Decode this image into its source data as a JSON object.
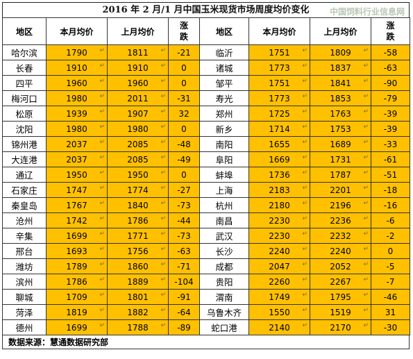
{
  "title": "2016 年 2 月/1 月中国玉米现货市场周度均价变化",
  "watermark": "中国饲料行业信息网",
  "return_mark": "↵",
  "headers": {
    "region": "地区",
    "this_month": "本月均价",
    "last_month": "上月均价",
    "change": "涨跌"
  },
  "rows": [
    {
      "l": {
        "region": "哈尔滨",
        "cur": "1790",
        "prev": "1811",
        "chg": "-21"
      },
      "r": {
        "region": "临沂",
        "cur": "1751",
        "prev": "1809",
        "chg": "-58"
      }
    },
    {
      "l": {
        "region": "长春",
        "cur": "1910",
        "prev": "1910",
        "chg": "0"
      },
      "r": {
        "region": "诸城",
        "cur": "1773",
        "prev": "1837",
        "chg": "-63"
      }
    },
    {
      "l": {
        "region": "四平",
        "cur": "1960",
        "prev": "1960",
        "chg": "0"
      },
      "r": {
        "region": "邹平",
        "cur": "1751",
        "prev": "1841",
        "chg": "-90"
      }
    },
    {
      "l": {
        "region": "梅河口",
        "cur": "1980",
        "prev": "2011",
        "chg": "-31"
      },
      "r": {
        "region": "寿光",
        "cur": "1773",
        "prev": "1853",
        "chg": "-79"
      }
    },
    {
      "l": {
        "region": "松原",
        "cur": "1939",
        "prev": "1907",
        "chg": "32"
      },
      "r": {
        "region": "郑州",
        "cur": "1725",
        "prev": "1763",
        "chg": "-39"
      }
    },
    {
      "l": {
        "region": "沈阳",
        "cur": "1980",
        "prev": "1980",
        "chg": "0"
      },
      "r": {
        "region": "新乡",
        "cur": "1714",
        "prev": "1753",
        "chg": "-39"
      }
    },
    {
      "l": {
        "region": "锦州港",
        "cur": "2037",
        "prev": "2085",
        "chg": "-48"
      },
      "r": {
        "region": "南阳",
        "cur": "1655",
        "prev": "1689",
        "chg": "-33"
      }
    },
    {
      "l": {
        "region": "大连港",
        "cur": "2037",
        "prev": "2085",
        "chg": "-49"
      },
      "r": {
        "region": "阜阳",
        "cur": "1669",
        "prev": "1731",
        "chg": "-61"
      }
    },
    {
      "l": {
        "region": "通辽",
        "cur": "1950",
        "prev": "1950",
        "chg": "0"
      },
      "r": {
        "region": "蚌埠",
        "cur": "1736",
        "prev": "1787",
        "chg": "-51"
      }
    },
    {
      "l": {
        "region": "石家庄",
        "cur": "1747",
        "prev": "1774",
        "chg": "-27"
      },
      "r": {
        "region": "上海",
        "cur": "2183",
        "prev": "2201",
        "chg": "-18"
      }
    },
    {
      "l": {
        "region": "秦皇岛",
        "cur": "1767",
        "prev": "1840",
        "chg": "-73"
      },
      "r": {
        "region": "杭州",
        "cur": "2180",
        "prev": "2196",
        "chg": "-16"
      }
    },
    {
      "l": {
        "region": "沧州",
        "cur": "1742",
        "prev": "1786",
        "chg": "-44"
      },
      "r": {
        "region": "南昌",
        "cur": "2230",
        "prev": "2236",
        "chg": "-6"
      }
    },
    {
      "l": {
        "region": "辛集",
        "cur": "1699",
        "prev": "1771",
        "chg": "-73"
      },
      "r": {
        "region": "武汉",
        "cur": "2230",
        "prev": "2232",
        "chg": "-2"
      }
    },
    {
      "l": {
        "region": "邢台",
        "cur": "1693",
        "prev": "1756",
        "chg": "-63"
      },
      "r": {
        "region": "长沙",
        "cur": "2240",
        "prev": "2240",
        "chg": "0"
      }
    },
    {
      "l": {
        "region": "潍坊",
        "cur": "1789",
        "prev": "1860",
        "chg": "-71"
      },
      "r": {
        "region": "成都",
        "cur": "2047",
        "prev": "2052",
        "chg": "-5"
      }
    },
    {
      "l": {
        "region": "滨州",
        "cur": "1786",
        "prev": "1889",
        "chg": "-104"
      },
      "r": {
        "region": "贵阳",
        "cur": "2260",
        "prev": "2267",
        "chg": "-7"
      }
    },
    {
      "l": {
        "region": "聊城",
        "cur": "1709",
        "prev": "1801",
        "chg": "-91"
      },
      "r": {
        "region": "渭南",
        "cur": "1749",
        "prev": "1795",
        "chg": "-46"
      }
    },
    {
      "l": {
        "region": "菏泽",
        "cur": "1819",
        "prev": "1882",
        "chg": "-64"
      },
      "r": {
        "region": "乌鲁木齐",
        "cur": "1550",
        "prev": "1519",
        "chg": "31"
      }
    },
    {
      "l": {
        "region": "德州",
        "cur": "1699",
        "prev": "1788",
        "chg": "-89"
      },
      "r": {
        "region": "蛇口港",
        "cur": "2140",
        "prev": "2170",
        "chg": "-30"
      }
    }
  ],
  "footer": "数据来源：慧通数据研究部",
  "colors": {
    "value_cell_bg": "#ffc000",
    "region_cell_bg": "#ffffff",
    "border": "#333333"
  }
}
